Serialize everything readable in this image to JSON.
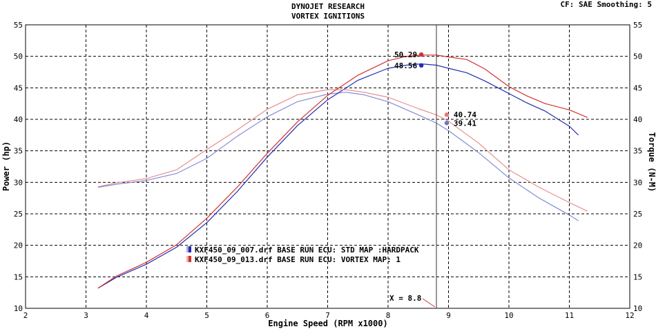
{
  "header": {
    "title_line1": "DYNOJET RESEARCH",
    "title_line2": "VORTEX IGNITIONS",
    "settings": "CF: SAE  Smoothing: 5"
  },
  "chart_data": {
    "type": "line",
    "xlabel": "Engine Speed (RPM x1000)",
    "ylabel_left": "Power (hp)",
    "ylabel_right": "Torque (N-M)",
    "xlim": [
      2,
      12
    ],
    "ylim": [
      10,
      55
    ],
    "xticks": [
      2,
      3,
      4,
      5,
      6,
      7,
      8,
      9,
      10,
      11,
      12
    ],
    "yticks": [
      10,
      15,
      20,
      25,
      30,
      35,
      40,
      45,
      50,
      55
    ],
    "grid": true,
    "legend_position": "lower-left",
    "cursor": {
      "x": 8.8,
      "label": "X = 8.8"
    },
    "series": [
      {
        "name": "KXF450_09_007.drf BASE RUN ECU: STD MAP :HARDPACK",
        "legend": "KXF450_09_007.drf BASE RUN ECU: STD MAP :HARDPACK",
        "color": "#1f2db0",
        "curves": {
          "power": {
            "x": [
              3.2,
              3.5,
              4.0,
              4.5,
              5.0,
              5.5,
              6.0,
              6.5,
              7.0,
              7.5,
              8.0,
              8.3,
              8.55,
              8.8,
              9.0,
              9.3,
              9.6,
              10.0,
              10.3,
              10.6,
              11.0,
              11.15
            ],
            "y": [
              13.2,
              14.9,
              17.0,
              19.7,
              23.6,
              28.5,
              34.0,
              39.0,
              43.1,
              46.2,
              48.1,
              48.6,
              48.8,
              48.6,
              48.1,
              47.4,
              46.1,
              44.1,
              42.6,
              41.3,
              38.9,
              37.5
            ]
          },
          "torque": {
            "x": [
              3.2,
              3.5,
              4.0,
              4.5,
              5.0,
              5.5,
              6.0,
              6.5,
              7.0,
              7.3,
              7.6,
              8.0,
              8.5,
              8.8,
              9.0,
              9.5,
              10.0,
              10.5,
              11.0,
              11.15
            ],
            "y": [
              29.2,
              29.7,
              30.3,
              31.4,
              33.8,
              37.3,
              40.4,
              42.8,
              44.0,
              44.3,
              43.9,
              42.8,
              40.7,
              39.4,
              38.2,
              34.7,
              30.7,
              27.5,
              24.8,
              23.9
            ]
          }
        },
        "markers": [
          {
            "x": 8.55,
            "y": 48.56,
            "label": "48.56"
          },
          {
            "x": 8.97,
            "y": 39.41,
            "label": "39.41"
          }
        ]
      },
      {
        "name": "KXF450_09_013.drf BASE RUN ECU: VORTEX MAP: 1",
        "legend": "KXF450_09_013.drf BASE RUN ECU: VORTEX MAP: 1",
        "color": "#d23232",
        "curves": {
          "power": {
            "x": [
              3.2,
              3.5,
              4.0,
              4.5,
              5.0,
              5.5,
              6.0,
              6.5,
              7.0,
              7.5,
              8.0,
              8.3,
              8.55,
              8.8,
              9.0,
              9.3,
              9.6,
              10.0,
              10.3,
              10.6,
              11.0,
              11.3
            ],
            "y": [
              13.2,
              15.1,
              17.3,
              20.1,
              24.3,
              29.2,
              34.6,
              39.6,
              43.8,
              47.0,
              49.3,
              50.0,
              50.2,
              50.2,
              49.9,
              49.5,
              48.0,
              45.2,
              43.7,
              42.5,
              41.5,
              40.3
            ]
          },
          "torque": {
            "x": [
              3.2,
              3.5,
              4.0,
              4.5,
              5.0,
              5.5,
              6.0,
              6.5,
              7.0,
              7.3,
              7.6,
              8.0,
              8.5,
              8.8,
              9.0,
              9.5,
              10.0,
              10.5,
              11.0,
              11.3
            ],
            "y": [
              29.3,
              29.9,
              30.6,
              32.0,
              35.2,
              38.3,
              41.6,
              43.9,
              44.7,
              44.7,
              44.3,
              43.5,
              41.7,
              40.7,
              39.7,
              36.2,
              32.0,
              29.2,
              26.8,
              25.4
            ]
          }
        },
        "markers": [
          {
            "x": 8.55,
            "y": 50.29,
            "label": "50.29"
          },
          {
            "x": 8.97,
            "y": 40.74,
            "label": "40.74"
          }
        ]
      }
    ]
  }
}
